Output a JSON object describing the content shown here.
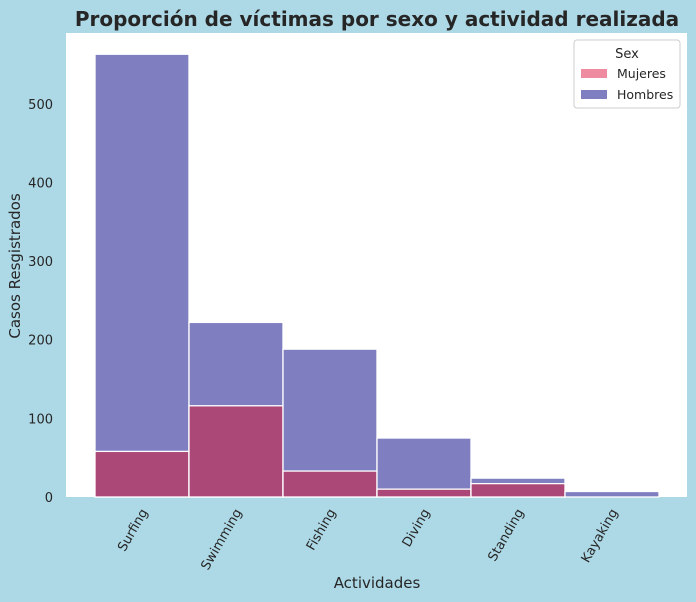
{
  "chart_data": {
    "type": "bar",
    "stacking": "overlay",
    "title": "Proporción de víctimas por sexo y actividad realizada",
    "xlabel": "Actividades",
    "ylabel": "Casos Resgistrados",
    "categories": [
      "Surfing",
      "Swimming",
      "Fishing",
      "Diving",
      "Standing",
      "Kayaking"
    ],
    "series": [
      {
        "name": "Hombres",
        "color": "#7f7ec0",
        "values": [
          563,
          222,
          188,
          75,
          24,
          7
        ]
      },
      {
        "name": "Mujeres",
        "color": "#ab4878",
        "legend_color": "#ef8ba0",
        "values": [
          58,
          116,
          33,
          10,
          17,
          0
        ]
      }
    ],
    "yticks": [
      0,
      100,
      200,
      300,
      400,
      500
    ],
    "ylim": [
      0,
      590
    ],
    "grid": false,
    "legend": {
      "title": "Sex",
      "position": "top-right",
      "entries": [
        "Mujeres",
        "Hombres"
      ]
    }
  }
}
